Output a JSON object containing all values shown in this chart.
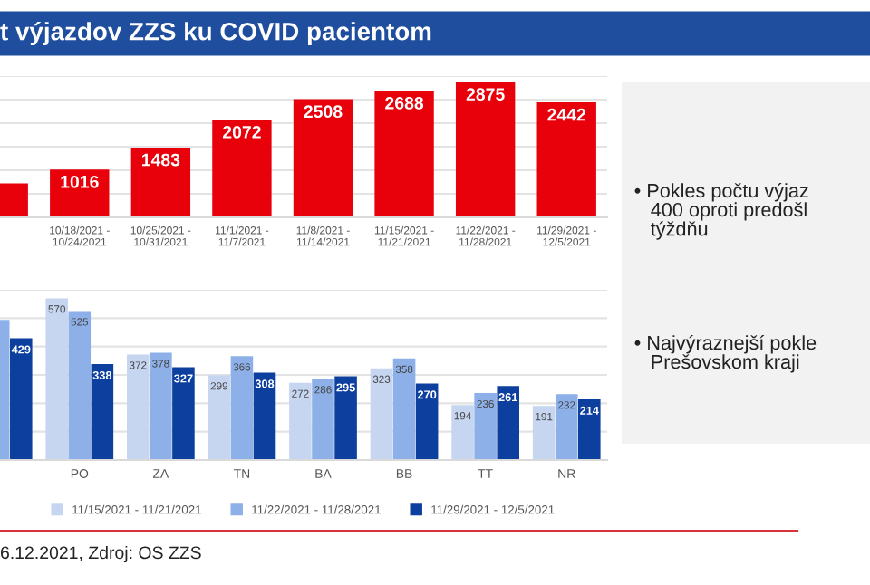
{
  "chart_data": [
    {
      "type": "bar",
      "title": "t výjazdov ZZS ku COVID pacientom",
      "categories": [
        null,
        "10/18/2021 -\n10/24/2021",
        "10/25/2021 -\n10/31/2021",
        "11/1/2021 -\n11/7/2021",
        "11/8/2021 -\n11/14/2021",
        "11/15/2021 -\n11/21/2021",
        "11/22/2021 -\n11/28/2021",
        "11/29/2021 -\n12/5/2021"
      ],
      "values": [
        720,
        1016,
        1483,
        2072,
        2508,
        2688,
        2875,
        2442
      ],
      "value_labels": [
        null,
        "1016",
        "1483",
        "2072",
        "2508",
        "2688",
        "2875",
        "2442"
      ],
      "color": "#e8000b",
      "ylim": [
        0,
        3000
      ],
      "yticks": [
        {
          "value": 0,
          "label": null
        },
        {
          "value": 500,
          "label": null
        },
        {
          "value": 1000,
          "label": null
        },
        {
          "value": 1500,
          "label": null
        },
        {
          "value": 2000,
          "label": null
        },
        {
          "value": 2500,
          "label": null
        },
        {
          "value": 3000,
          "label": null
        }
      ],
      "grid": "y",
      "tick_labels": "x"
    },
    {
      "type": "bar",
      "categories": [
        null,
        "PO",
        "ZA",
        "TN",
        "BA",
        "BB",
        "TT",
        "NR"
      ],
      "series": [
        {
          "name": "11/15/2021 - 11/21/2021",
          "color": "#c6d6f1",
          "values": [
            null,
            570,
            372,
            299,
            272,
            323,
            194,
            191
          ],
          "value_labels": [
            null,
            "570",
            "372",
            "299",
            "272",
            "323",
            "194",
            "191"
          ]
        },
        {
          "name": "11/22/2021 - 11/28/2021",
          "color": "#8db0e8",
          "values": [
            494,
            525,
            378,
            366,
            286,
            358,
            236,
            232
          ],
          "value_labels": [
            null,
            "525",
            "378",
            "366",
            "286",
            "358",
            "236",
            "232"
          ]
        },
        {
          "name": "11/29/2021 - 12/5/2021",
          "color": "#0d3f9e",
          "values": [
            429,
            338,
            327,
            308,
            295,
            270,
            261,
            214
          ],
          "value_labels": [
            "429",
            "338",
            "327",
            "308",
            "295",
            "270",
            "261",
            "214"
          ]
        }
      ],
      "ylim": [
        0,
        600
      ],
      "yticks": [
        {
          "value": 0,
          "label": null
        },
        {
          "value": 100,
          "label": null
        },
        {
          "value": 200,
          "label": null
        },
        {
          "value": 300,
          "label": null
        },
        {
          "value": 400,
          "label": null
        },
        {
          "value": 500,
          "label": null
        },
        {
          "value": 600,
          "label": null
        }
      ],
      "grid": "y",
      "tick_labels": "x",
      "legend": "bottom",
      "annotations": [
        "6.12.2021, Zdroj: OS ZZS"
      ]
    },
    {
      "type": "other",
      "annotations": [
        "• Pokles počtu výjaz\n   400 oproti predošl\n   týždňu",
        "• Najvýraznejší pokle\n   Prešovskom kraji"
      ]
    }
  ]
}
